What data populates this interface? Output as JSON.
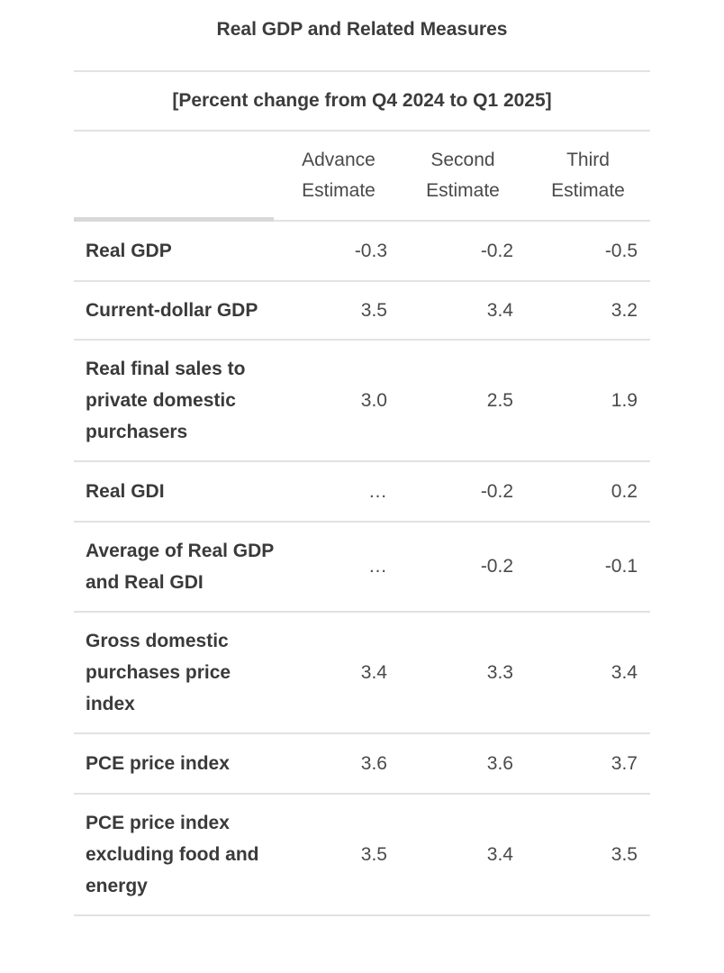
{
  "table": {
    "title": "Real GDP and Related Measures",
    "subtitle": "[Percent change from Q4 2024 to Q1 2025]",
    "columns": [
      {
        "line1": "Advance",
        "line2": "Estimate"
      },
      {
        "line1": "Second",
        "line2": "Estimate"
      },
      {
        "line1": "Third",
        "line2": "Estimate"
      }
    ],
    "rows": [
      {
        "label": "Real GDP",
        "values": [
          "-0.3",
          "-0.2",
          "-0.5"
        ]
      },
      {
        "label": "Current-dollar GDP",
        "values": [
          "3.5",
          "3.4",
          "3.2"
        ]
      },
      {
        "label": "Real final sales to private domestic purchasers",
        "values": [
          "3.0",
          "2.5",
          "1.9"
        ]
      },
      {
        "label": "Real GDI",
        "values": [
          "…",
          "-0.2",
          "0.2"
        ]
      },
      {
        "label": "Average of Real GDP and Real GDI",
        "values": [
          "…",
          "-0.2",
          "-0.1"
        ]
      },
      {
        "label": "Gross domestic purchases price index",
        "values": [
          "3.4",
          "3.3",
          "3.4"
        ]
      },
      {
        "label": "PCE price index",
        "values": [
          "3.6",
          "3.6",
          "3.7"
        ]
      },
      {
        "label": "PCE price index excluding food and energy",
        "values": [
          "3.5",
          "3.4",
          "3.5"
        ]
      }
    ]
  }
}
